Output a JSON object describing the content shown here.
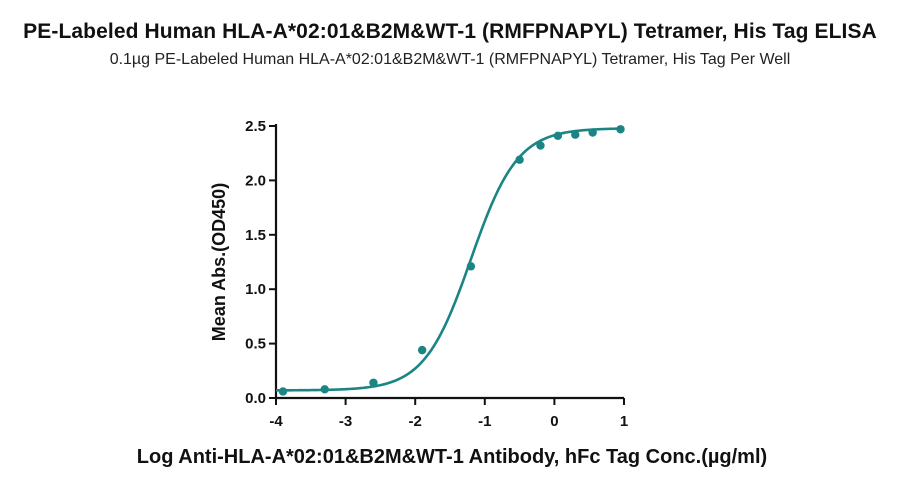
{
  "chart_data": {
    "type": "scatter",
    "title": "PE-Labeled Human HLA-A*02:01&B2M&WT-1 (RMFPNAPYL) Tetramer, His Tag ELISA",
    "subtitle": "0.1µg PE-Labeled Human HLA-A*02:01&B2M&WT-1 (RMFPNAPYL) Tetramer, His Tag Per Well",
    "xlabel": "Log Anti-HLA-A*02:01&B2M&WT-1 Antibody, hFc Tag Conc.(µg/ml)",
    "ylabel": "Mean Abs.(OD450)",
    "xlim": [
      -4,
      1
    ],
    "ylim": [
      0,
      2.5
    ],
    "x_ticks": [
      "-4",
      "-3",
      "-2",
      "-1",
      "0",
      "1"
    ],
    "y_ticks": [
      "0.0",
      "0.5",
      "1.0",
      "1.5",
      "2.0",
      "2.5"
    ],
    "grid": false,
    "color": "#1a8584",
    "series": [
      {
        "x": [
          -3.9,
          -3.3,
          -2.6,
          -1.9,
          -1.2,
          -0.5,
          -0.2,
          0.05,
          0.3,
          0.55,
          0.95
        ],
        "values": [
          0.06,
          0.08,
          0.14,
          0.44,
          1.21,
          2.19,
          2.32,
          2.41,
          2.42,
          2.44,
          2.47
        ]
      }
    ],
    "fit_curve": {
      "model": "4PL",
      "bottom": 0.07,
      "top": 2.48,
      "log_ec50": -1.2,
      "hill": 1.3
    }
  }
}
